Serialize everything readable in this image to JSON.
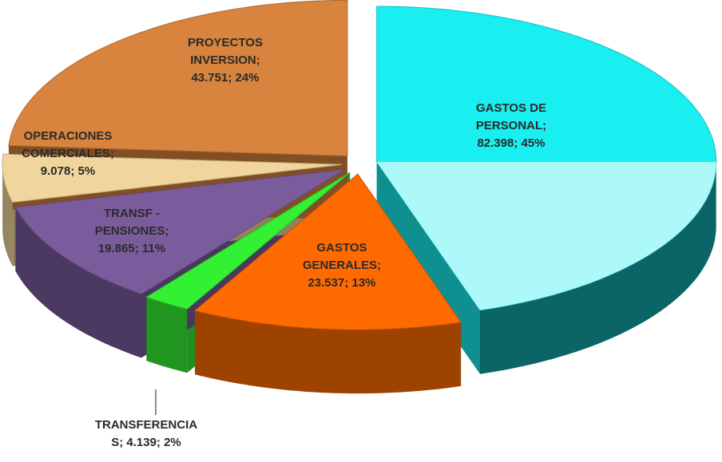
{
  "chart_data": {
    "type": "pie3d",
    "values": [
      82.398,
      23.537,
      4.139,
      19.865,
      9.078,
      43.751
    ],
    "value_labels": [
      [
        "GASTOS DE",
        "PERSONAL;",
        "82.398; 45%"
      ],
      [
        "GASTOS",
        "GENERALES;",
        "23.537; 13%"
      ],
      [
        "TRANSFERENCIA",
        "S; 4.139; 2%"
      ],
      [
        "TRANSF -",
        "PENSIONES;",
        "19.865; 11%"
      ],
      [
        "OPERACIONES",
        "COMERCIALES;",
        "9.078; 5%"
      ],
      [
        "PROYECTOS",
        "INVERSION;",
        "43.751; 24%"
      ]
    ],
    "colors": [
      "#19eef0",
      "#ff6a00",
      "#33f033",
      "#7a5c9c",
      "#f0d69c",
      "#d8843e"
    ]
  }
}
